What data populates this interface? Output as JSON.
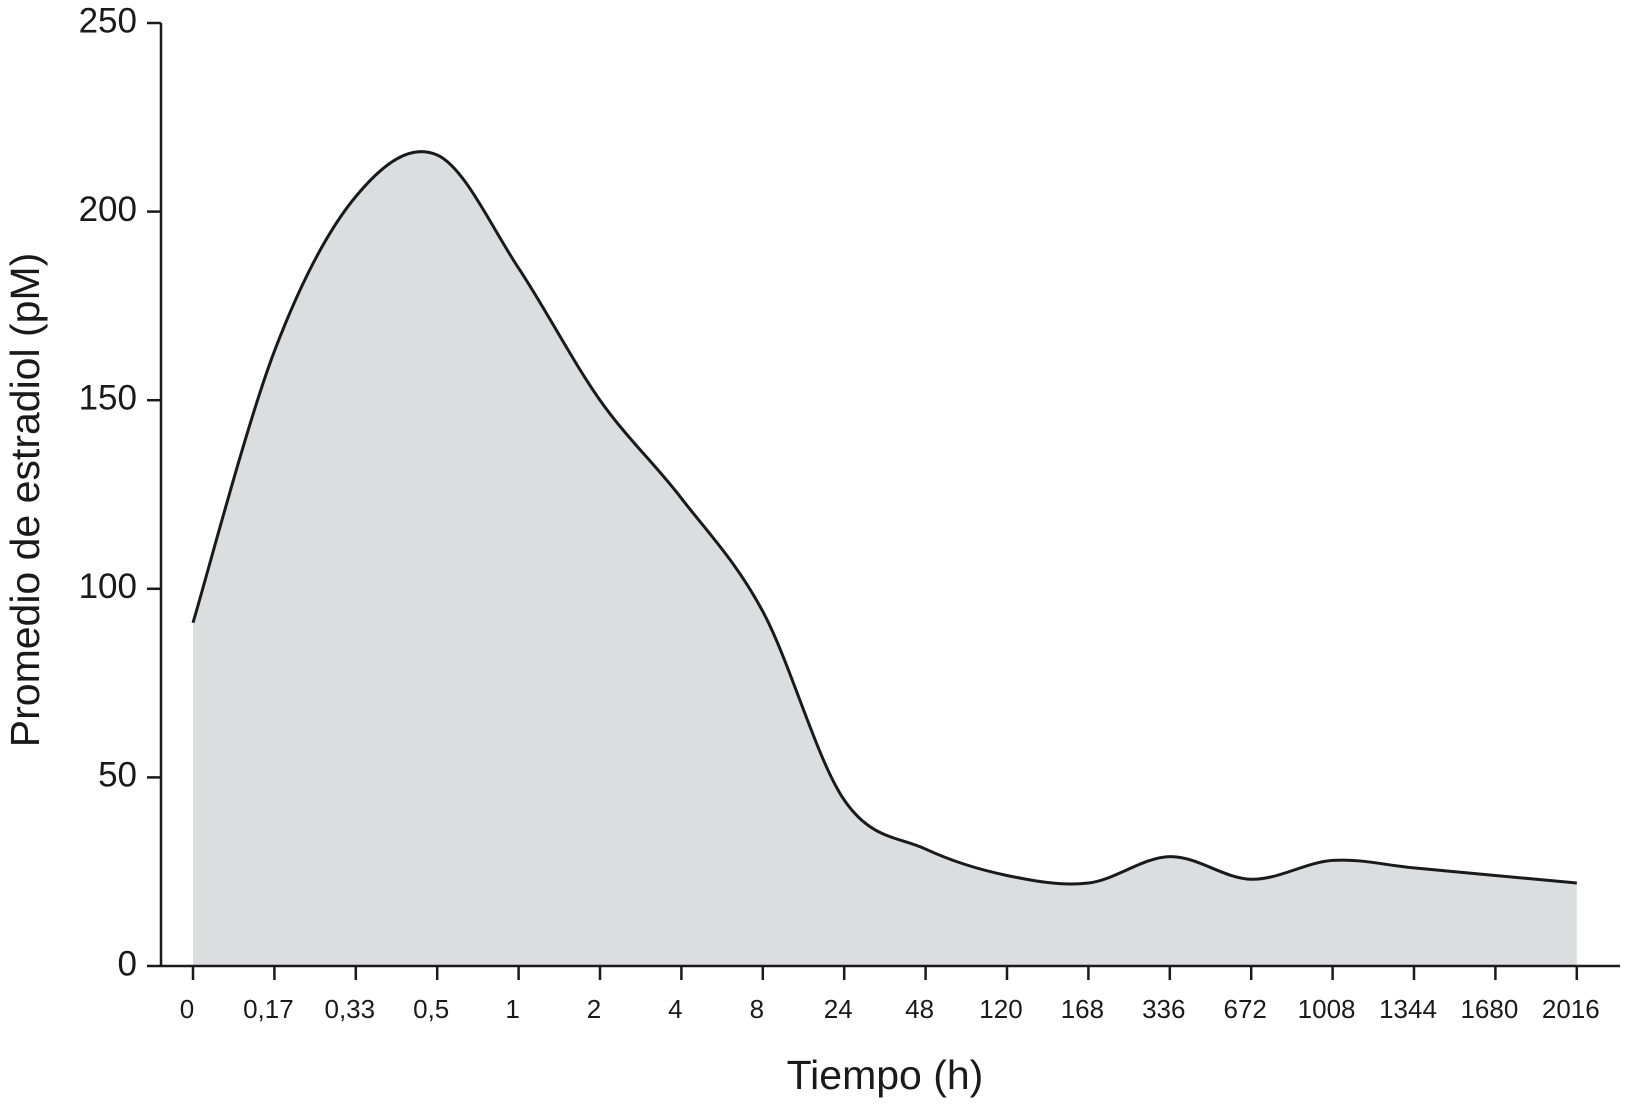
{
  "chart_data": {
    "type": "area",
    "x_label": "Tiempo (h)",
    "y_label": "Promedio de estradiol (pM)",
    "categories": [
      "0",
      "0,17",
      "0,33",
      "0,5",
      "1",
      "2",
      "4",
      "8",
      "24",
      "48",
      "120",
      "168",
      "336",
      "672",
      "1008",
      "1344",
      "1680",
      "2016"
    ],
    "values": [
      91,
      163,
      204,
      215,
      185,
      150,
      124,
      94,
      44,
      31,
      24,
      22,
      29,
      23,
      28,
      26,
      24,
      22
    ],
    "color": "#dcdddf",
    "line_color": "#1a1a1a",
    "ylim": [
      0,
      250
    ],
    "yticks": [
      0,
      50,
      100,
      150,
      200,
      250
    ]
  }
}
